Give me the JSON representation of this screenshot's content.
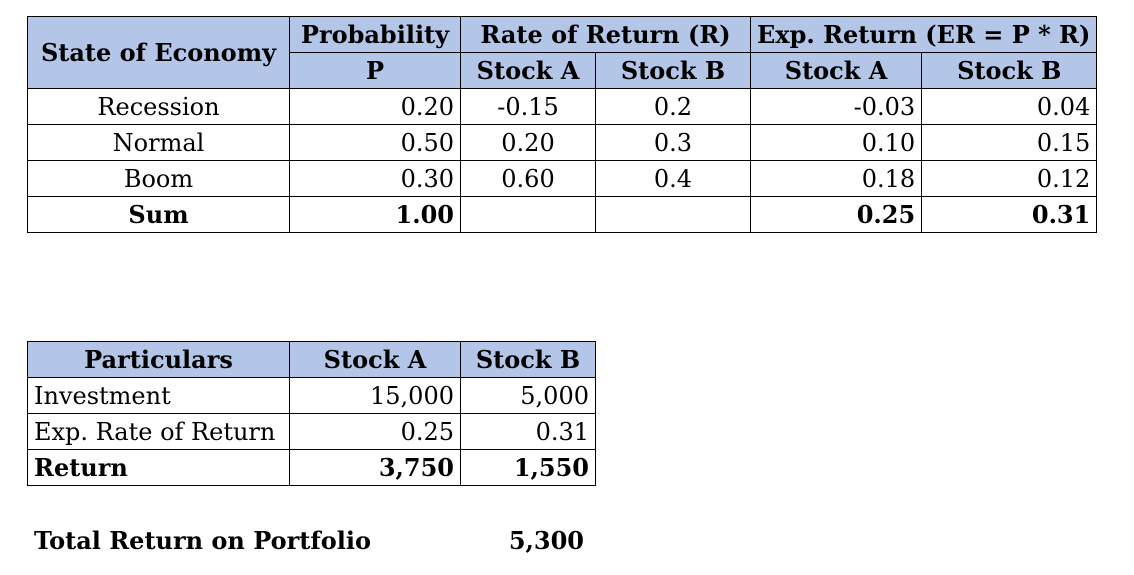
{
  "expected_return_table": {
    "header_state": "State of Economy",
    "header_probability": "Probability",
    "header_rate_of_return": "Rate of Return (R)",
    "header_exp_return": "Exp. Return (ER = P * R)",
    "subheader_p": "P",
    "subheader_stock_a_rate": "Stock A",
    "subheader_stock_b_rate": "Stock B",
    "subheader_stock_a_er": "Stock A",
    "subheader_stock_b_er": "Stock B",
    "rows": [
      {
        "state": "Recession",
        "p": "0.20",
        "r_a": "-0.15",
        "r_b": "0.2",
        "er_a": "-0.03",
        "er_b": "0.04"
      },
      {
        "state": "Normal",
        "p": "0.50",
        "r_a": "0.20",
        "r_b": "0.3",
        "er_a": "0.10",
        "er_b": "0.15"
      },
      {
        "state": "Boom",
        "p": "0.30",
        "r_a": "0.60",
        "r_b": "0.4",
        "er_a": "0.18",
        "er_b": "0.12"
      }
    ],
    "sum_row": {
      "label": "Sum",
      "p": "1.00",
      "r_a": "",
      "r_b": "",
      "er_a": "0.25",
      "er_b": "0.31"
    }
  },
  "portfolio_table": {
    "header_particulars": "Particulars",
    "header_stock_a": "Stock A",
    "header_stock_b": "Stock B",
    "rows": [
      {
        "label": "Investment",
        "a": "15,000",
        "b": "5,000"
      },
      {
        "label": "Exp. Rate of Return",
        "a": "0.25",
        "b": "0.31"
      }
    ],
    "return_row": {
      "label": "Return",
      "a": "3,750",
      "b": "1,550"
    }
  },
  "total": {
    "label": "Total Return on Portfolio",
    "value": "5,300"
  }
}
